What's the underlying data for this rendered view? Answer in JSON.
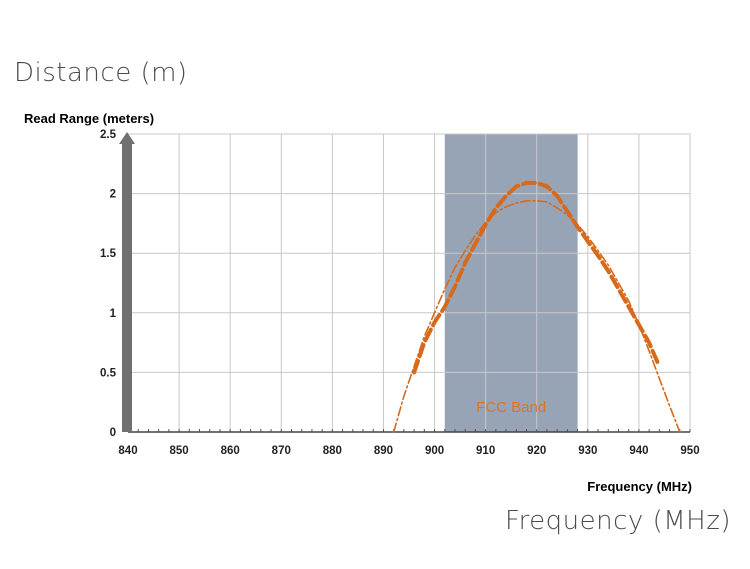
{
  "outer_labels": {
    "y_caption": "Distance (m)",
    "x_caption": "Frequency (MHz)"
  },
  "chart_data": {
    "type": "line",
    "title": "",
    "ylabel": "Read Range  (meters)",
    "xlabel": "Frequency (MHz)",
    "xlim": [
      840,
      950
    ],
    "ylim": [
      0,
      2.5
    ],
    "x_ticks": [
      "840",
      "850",
      "860",
      "870",
      "880",
      "890",
      "900",
      "910",
      "920",
      "930",
      "940",
      "950"
    ],
    "y_ticks": [
      "0",
      "0.5",
      "1",
      "1.5",
      "2",
      "2.5"
    ],
    "grid": true,
    "band": {
      "label": "FCC Band",
      "x_start": 902,
      "x_end": 928,
      "color": "#8c9aae"
    },
    "colors": {
      "series": "#d9691a",
      "band_label": "#e0741e",
      "y_arrow": "#707070",
      "grid": "#c8c8c8"
    },
    "series": [
      {
        "style": "thick-dashed",
        "points": [
          [
            896,
            0.5
          ],
          [
            898,
            0.75
          ],
          [
            900,
            0.92
          ],
          [
            902,
            1.05
          ],
          [
            904,
            1.22
          ],
          [
            906,
            1.42
          ],
          [
            908,
            1.58
          ],
          [
            910,
            1.74
          ],
          [
            912,
            1.88
          ],
          [
            914,
            1.98
          ],
          [
            916,
            2.06
          ],
          [
            918,
            2.09
          ],
          [
            920,
            2.09
          ],
          [
            922,
            2.06
          ],
          [
            924,
            1.98
          ],
          [
            926,
            1.85
          ],
          [
            928,
            1.72
          ],
          [
            930,
            1.6
          ],
          [
            932,
            1.48
          ],
          [
            934,
            1.35
          ],
          [
            936,
            1.2
          ],
          [
            938,
            1.05
          ],
          [
            940,
            0.9
          ],
          [
            942,
            0.75
          ],
          [
            944,
            0.55
          ]
        ]
      },
      {
        "style": "thin-dash-dot",
        "points": [
          [
            892,
            0
          ],
          [
            894,
            0.3
          ],
          [
            896,
            0.55
          ],
          [
            898,
            0.8
          ],
          [
            900,
            1.0
          ],
          [
            902,
            1.2
          ],
          [
            904,
            1.38
          ],
          [
            906,
            1.52
          ],
          [
            908,
            1.65
          ],
          [
            910,
            1.76
          ],
          [
            912,
            1.84
          ],
          [
            914,
            1.89
          ],
          [
            916,
            1.92
          ],
          [
            918,
            1.94
          ],
          [
            920,
            1.94
          ],
          [
            922,
            1.93
          ],
          [
            924,
            1.88
          ],
          [
            926,
            1.82
          ],
          [
            928,
            1.74
          ],
          [
            930,
            1.64
          ],
          [
            932,
            1.52
          ],
          [
            934,
            1.4
          ],
          [
            936,
            1.25
          ],
          [
            938,
            1.1
          ],
          [
            940,
            0.9
          ],
          [
            942,
            0.68
          ],
          [
            944,
            0.45
          ],
          [
            946,
            0.22
          ],
          [
            948,
            0
          ]
        ]
      }
    ]
  }
}
